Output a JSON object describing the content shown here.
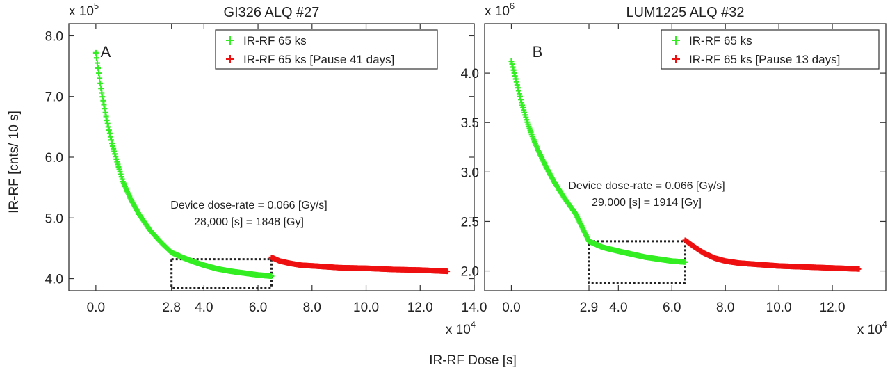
{
  "xlabel": "IR-RF Dose [s]",
  "ylabel": "IR-RF [cnts/ 10 s]",
  "chart_data": [
    {
      "type": "scatter",
      "title": "GI326 ALQ #27",
      "panel_letter": "A",
      "y_multiplier_base": "x 10",
      "y_multiplier_exp": "5",
      "x_multiplier_base": "x 10",
      "x_multiplier_exp": "4",
      "xlim": [
        -1.0,
        14.0
      ],
      "ylim": [
        3.8,
        8.2
      ],
      "x_ticks": [
        0.0,
        2.8,
        4.0,
        6.0,
        8.0,
        10.0,
        12.0,
        14.0
      ],
      "x_tick_labels": [
        "0.0",
        "2.8",
        "4.0",
        "6.0",
        "8.0",
        "10.0",
        "12.0",
        "14.0"
      ],
      "y_ticks": [
        4.0,
        5.0,
        6.0,
        7.0,
        8.0
      ],
      "y_tick_labels": [
        "4.0",
        "5.0",
        "6.0",
        "7.0",
        "8.0"
      ],
      "legend_position": "top-right",
      "series": [
        {
          "name": "IR-RF 65 ks",
          "color": "#33ee22",
          "x": [
            0.0,
            0.2,
            0.4,
            0.6,
            0.8,
            1.0,
            1.3,
            1.6,
            2.0,
            2.4,
            2.8,
            3.2,
            3.6,
            4.0,
            4.5,
            5.0,
            5.5,
            6.0,
            6.5
          ],
          "y": [
            7.72,
            7.1,
            6.62,
            6.22,
            5.9,
            5.6,
            5.3,
            5.06,
            4.8,
            4.6,
            4.43,
            4.35,
            4.28,
            4.22,
            4.16,
            4.12,
            4.09,
            4.06,
            4.04
          ]
        },
        {
          "name": "IR-RF 65 ks [Pause 41 days]",
          "color": "#ee1111",
          "x": [
            6.5,
            6.8,
            7.2,
            7.6,
            8.0,
            9.0,
            10.0,
            11.0,
            12.0,
            13.0
          ],
          "y": [
            4.35,
            4.29,
            4.25,
            4.22,
            4.21,
            4.18,
            4.17,
            4.15,
            4.14,
            4.12
          ]
        }
      ],
      "annotation": [
        "Device dose-rate = 0.066 [Gy/s]",
        "28,000 [s] = 1848 [Gy]"
      ],
      "highlight_box": {
        "x": [
          2.8,
          6.5
        ],
        "y": [
          3.85,
          4.32
        ]
      }
    },
    {
      "type": "scatter",
      "title": "LUM1225 ALQ #32",
      "panel_letter": "B",
      "y_multiplier_base": "x 10",
      "y_multiplier_exp": "6",
      "x_multiplier_base": "x 10",
      "x_multiplier_exp": "4",
      "xlim": [
        -1.0,
        14.0
      ],
      "ylim": [
        1.8,
        4.5
      ],
      "x_ticks": [
        0.0,
        2.9,
        4.0,
        6.0,
        8.0,
        10.0,
        12.0
      ],
      "x_tick_labels": [
        "0.0",
        "2.9",
        "4.0",
        "6.0",
        "8.0",
        "10.0",
        "12.0"
      ],
      "y_ticks": [
        2.0,
        2.5,
        3.0,
        3.5,
        4.0
      ],
      "y_tick_labels": [
        "2.0",
        "2.5",
        "3.0",
        "3.5",
        "4.0"
      ],
      "legend_position": "top-right",
      "series": [
        {
          "name": "IR-RF 65 ks",
          "color": "#33ee22",
          "x": [
            0.0,
            0.2,
            0.4,
            0.6,
            0.8,
            1.0,
            1.3,
            1.6,
            2.0,
            2.4,
            2.9,
            3.4,
            4.0,
            4.5,
            5.0,
            5.5,
            6.0,
            6.5
          ],
          "y": [
            4.12,
            3.9,
            3.68,
            3.5,
            3.35,
            3.22,
            3.05,
            2.9,
            2.73,
            2.58,
            2.3,
            2.24,
            2.2,
            2.17,
            2.14,
            2.12,
            2.1,
            2.09
          ]
        },
        {
          "name": "IR-RF 65 ks [Pause 13 days]",
          "color": "#ee1111",
          "x": [
            6.5,
            6.8,
            7.2,
            7.6,
            8.0,
            8.5,
            9.0,
            10.0,
            11.0,
            12.0,
            13.0
          ],
          "y": [
            2.31,
            2.25,
            2.18,
            2.13,
            2.1,
            2.08,
            2.07,
            2.05,
            2.04,
            2.03,
            2.02
          ]
        }
      ],
      "annotation": [
        "Device dose-rate = 0.066 [Gy/s]",
        "29,000 [s] = 1914 [Gy]"
      ],
      "highlight_box": {
        "x": [
          2.9,
          6.5
        ],
        "y": [
          1.88,
          2.3
        ]
      }
    }
  ]
}
